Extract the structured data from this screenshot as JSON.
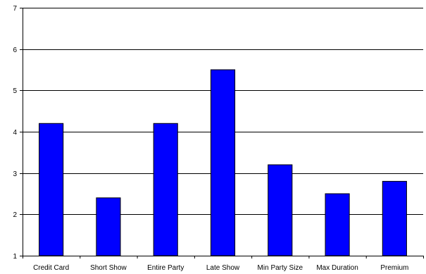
{
  "chart_data": {
    "type": "bar",
    "title": "",
    "xlabel": "",
    "ylabel": "",
    "categories": [
      "Credit Card",
      "Short Show",
      "Entire Party",
      "Late Show",
      "Min Party Size",
      "Max Duration",
      "Premium"
    ],
    "values": [
      4.2,
      2.4,
      4.2,
      5.5,
      3.2,
      2.5,
      2.8
    ],
    "ylim": [
      1,
      7
    ],
    "yticks": [
      1,
      2,
      3,
      4,
      5,
      6,
      7
    ],
    "grid": true,
    "legend": "none",
    "colors": {
      "bar_fill": "#0000ff",
      "bar_stroke": "#000000",
      "grid": "#000000",
      "axis": "#000000"
    }
  }
}
